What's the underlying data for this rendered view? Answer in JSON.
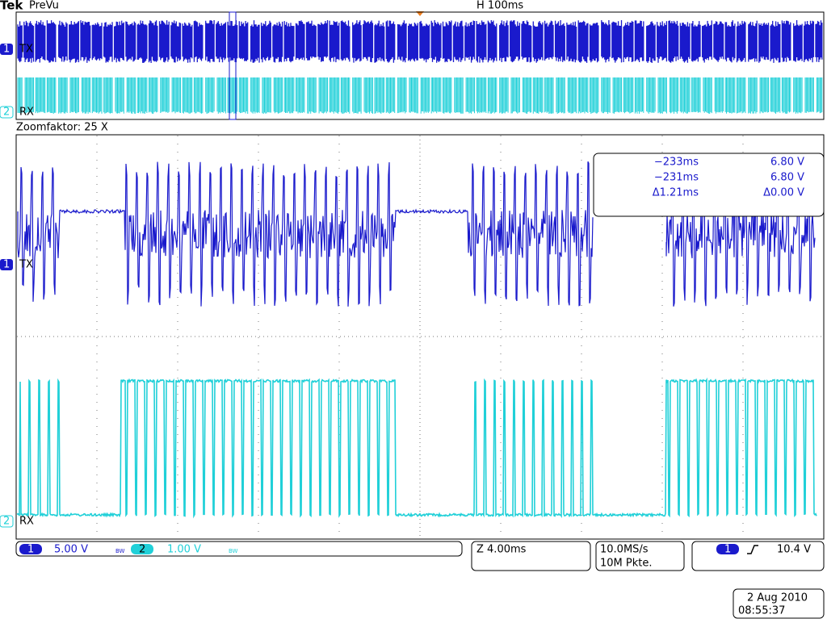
{
  "header": {
    "brand": "Tek",
    "mode": "PreVu",
    "timebase": "H 100ms"
  },
  "overview": {
    "ch1_number": "1",
    "ch1_label": "TX",
    "ch2_number": "2",
    "ch2_label": "RX"
  },
  "zoom": {
    "label": "Zoomfaktor: 25 X",
    "ch1_number": "1",
    "ch1_label": "TX",
    "ch2_number": "2",
    "ch2_label": "RX"
  },
  "cursor_readout": {
    "rows": [
      [
        "−233ms",
        "6.80 V"
      ],
      [
        "−231ms",
        "6.80 V"
      ],
      [
        "Δ1.21ms",
        "Δ0.00 V"
      ]
    ]
  },
  "status_bar": {
    "ch1_number": "1",
    "ch1_scale": "5.00 V",
    "ch1_bw": "BW",
    "ch2_number": "2",
    "ch2_scale": "1.00 V",
    "ch2_bw": "BW",
    "zoom_scale": "Z 4.00ms",
    "sample_rate": "10.0MS/s",
    "record_length": "10M Pkte.",
    "trigger_channel": "1",
    "trigger_level": "10.4 V"
  },
  "timestamp": {
    "date": "2 Aug 2010",
    "time": "08:55:37"
  }
}
